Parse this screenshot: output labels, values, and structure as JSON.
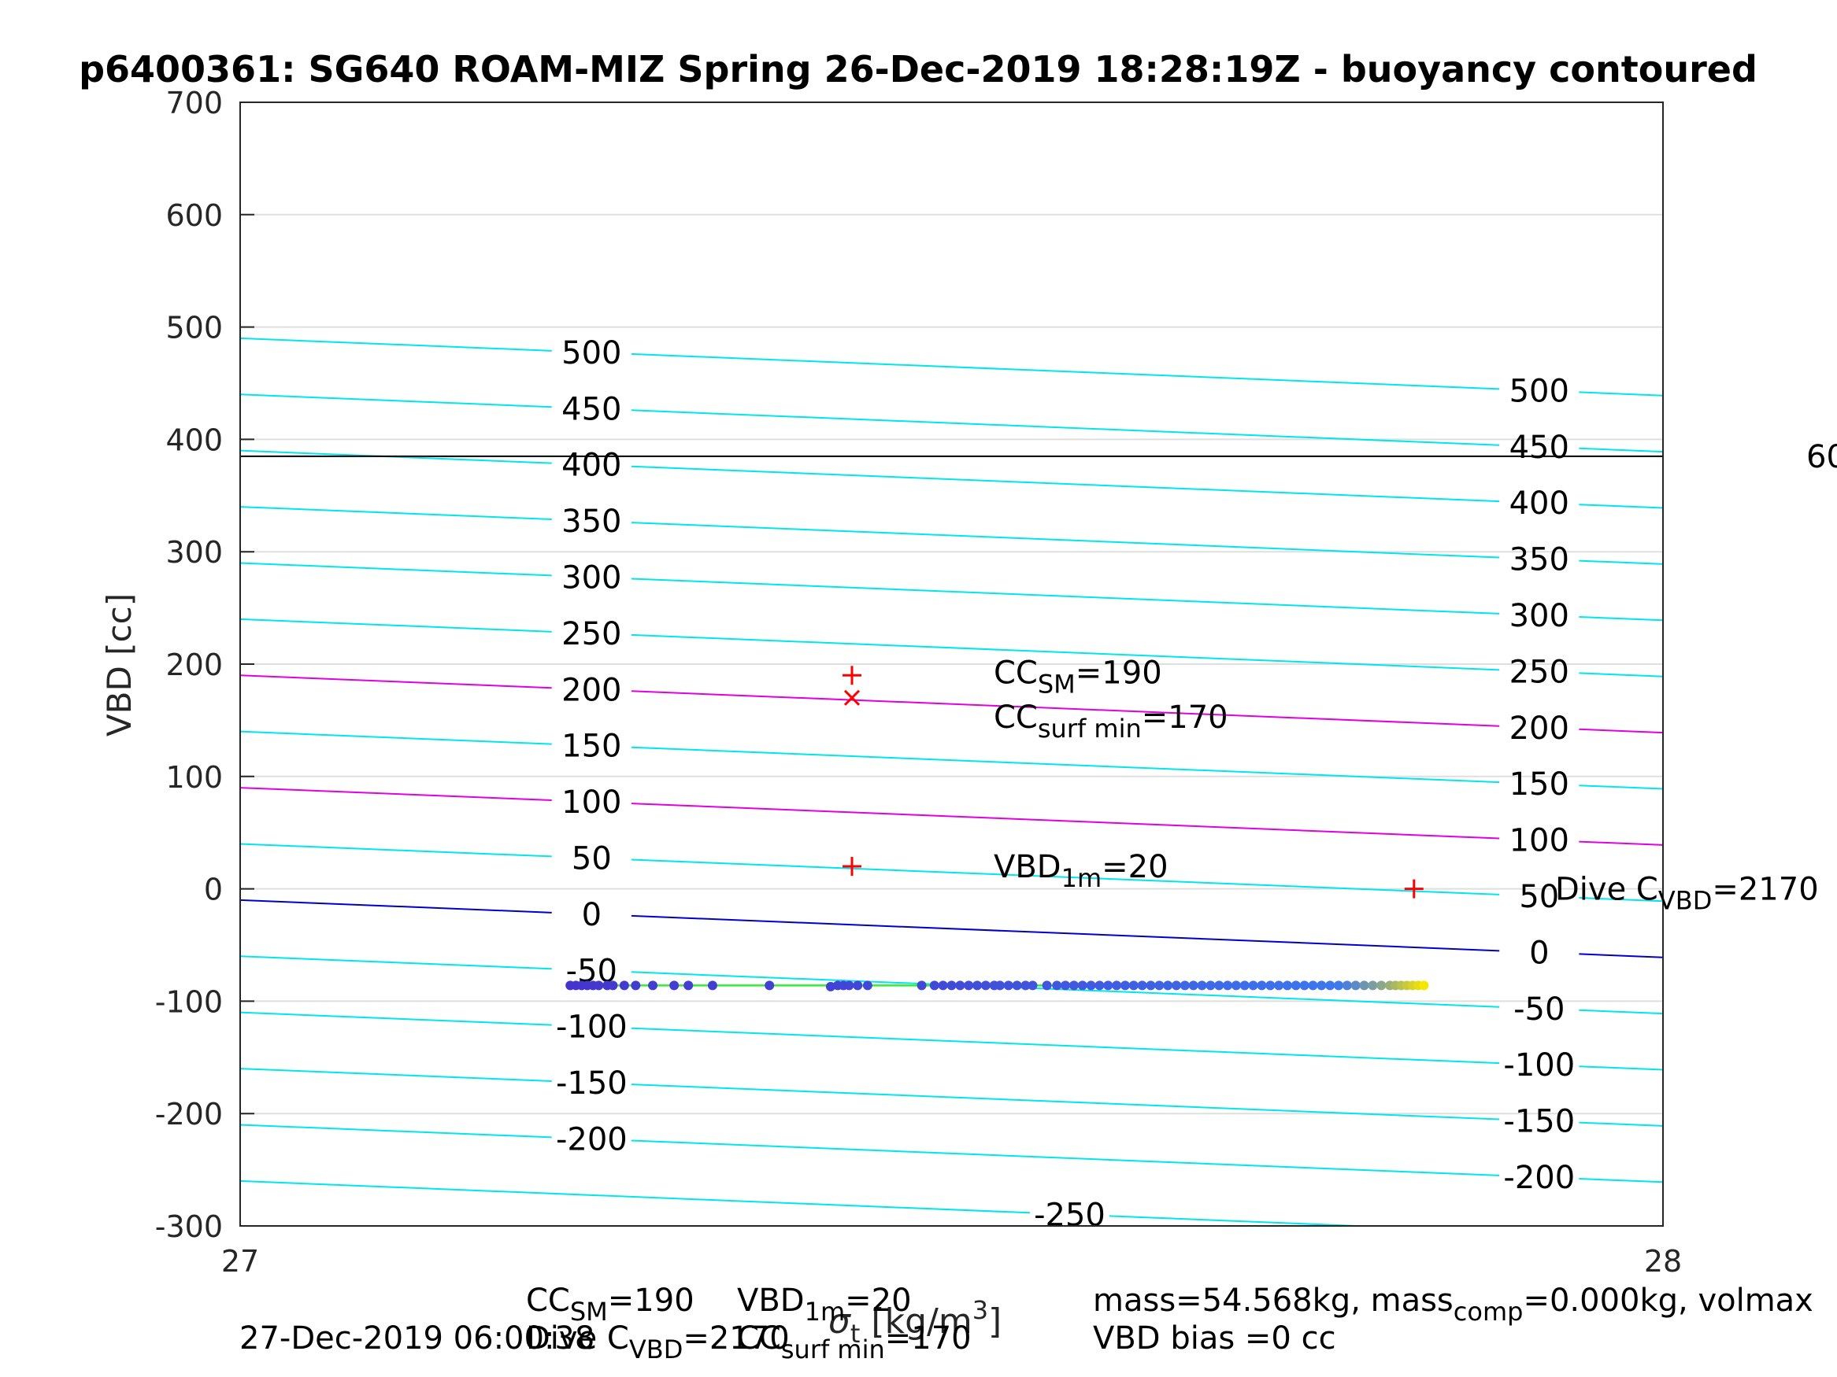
{
  "chart_data": {
    "type": "scatter",
    "title": "p6400361: SG640 ROAM-MIZ Spring 26-Dec-2019 18:28:19Z - buoyancy contoured",
    "ylabel": "VBD [cc]",
    "xlabel_prefix": "σ",
    "xlabel_sub": "t",
    "xlabel_suffix": " [kg/m",
    "xlabel_sup": "3",
    "xlabel_close": "]",
    "xlim": [
      27,
      28
    ],
    "ylim": [
      -300,
      700
    ],
    "x_ticks": [
      "27",
      "28"
    ],
    "y_ticks": [
      "-300",
      "-200",
      "-100",
      "0",
      "100",
      "200",
      "300",
      "400",
      "500",
      "600",
      "700"
    ],
    "grid": true,
    "colors": {
      "contour": "#00e5ee",
      "contour_magenta": "#e000e0",
      "zero_contour": "#0000cc",
      "hline": "#000000",
      "marker": "#ff0000",
      "fit_line": "#33ee33",
      "points_low": "#4433cc",
      "points_high": "#f5e600"
    },
    "contours": {
      "levels": [
        -250,
        -200,
        -150,
        -100,
        -50,
        0,
        50,
        100,
        150,
        200,
        250,
        300,
        350,
        400,
        450,
        500
      ],
      "slope_cc_per_unit": -51,
      "offset_cc_at_x27": -10,
      "magenta_levels": [
        100,
        200
      ],
      "left_labels": [
        "500",
        "450",
        "400",
        "350",
        "300",
        "250",
        "200",
        "150",
        "100",
        "50",
        "0",
        "-50",
        "-100",
        "-150",
        "-200"
      ],
      "right_labels": [
        "500",
        "450",
        "400",
        "350",
        "300",
        "250",
        "200",
        "150",
        "100",
        "50",
        "0",
        "-50",
        "-100",
        "-150",
        "-200"
      ],
      "bottom_label": "-250",
      "left_label_x": 27.247,
      "right_label_x": 27.913,
      "bottom_label_x": 27.583
    },
    "hline": {
      "y": 385,
      "label": "60"
    },
    "markers": [
      {
        "x": 27.43,
        "y": 190,
        "symbol": "+",
        "label_main": "CC",
        "label_sub": "SM",
        "label_tail": "=190"
      },
      {
        "x": 27.43,
        "y": 170,
        "symbol": "x",
        "label_main": "CC",
        "label_sub": "surf min",
        "label_tail": "=170"
      },
      {
        "x": 27.43,
        "y": 20,
        "symbol": "+",
        "label_main": "VBD",
        "label_sub": "1m",
        "label_tail": "=20"
      },
      {
        "x": 27.825,
        "y": 0,
        "symbol": "+",
        "label_main": "Dive C",
        "label_sub": "VBD",
        "label_tail": "=2170"
      }
    ],
    "fit_line": {
      "x": [
        27.23,
        27.83
      ],
      "y": [
        -86,
        -86
      ]
    },
    "points": {
      "x": [
        27.232,
        27.236,
        27.24,
        27.244,
        27.248,
        27.252,
        27.258,
        27.262,
        27.27,
        27.278,
        27.29,
        27.305,
        27.315,
        27.332,
        27.372,
        27.415,
        27.42,
        27.424,
        27.428,
        27.434,
        27.441,
        27.479,
        27.488,
        27.494,
        27.5,
        27.506,
        27.512,
        27.518,
        27.524,
        27.53,
        27.534,
        27.54,
        27.546,
        27.552,
        27.557,
        27.567,
        27.574,
        27.58,
        27.586,
        27.592,
        27.598,
        27.604,
        27.61,
        27.616,
        27.622,
        27.628,
        27.634,
        27.64,
        27.646,
        27.652,
        27.658,
        27.664,
        27.67,
        27.676,
        27.682,
        27.688,
        27.694,
        27.7,
        27.706,
        27.712,
        27.718,
        27.724,
        27.73,
        27.736,
        27.742,
        27.748,
        27.754,
        27.76,
        27.766,
        27.772,
        27.778,
        27.784,
        27.79,
        27.796,
        27.802,
        27.808,
        27.812,
        27.816,
        27.82,
        27.824,
        27.828,
        27.832
      ],
      "y": [
        -86,
        -86,
        -86,
        -86,
        -86,
        -86,
        -86,
        -86,
        -86,
        -86,
        -86,
        -86,
        -86,
        -86,
        -86,
        -87,
        -86,
        -86,
        -86,
        -86,
        -86,
        -86,
        -86,
        -86,
        -86,
        -86,
        -86,
        -86,
        -86,
        -86,
        -86,
        -86,
        -86,
        -86,
        -86,
        -86,
        -86,
        -86,
        -86,
        -86,
        -86,
        -86,
        -86,
        -86,
        -86,
        -86,
        -86,
        -86,
        -86,
        -86,
        -86,
        -86,
        -86,
        -86,
        -86,
        -86,
        -86,
        -86,
        -86,
        -86,
        -86,
        -86,
        -86,
        -86,
        -86,
        -86,
        -86,
        -86,
        -86,
        -86,
        -86,
        -86,
        -86,
        -86,
        -86,
        -86,
        -86,
        -86,
        -86,
        -86,
        -86,
        -86
      ]
    },
    "footer": {
      "timestamp": "27-Dec-2019 06:00:38",
      "cc_sm_main": "CC",
      "cc_sm_sub": "SM",
      "cc_sm_tail": "=190",
      "vbd1m_main": "VBD",
      "vbd1m_sub": "1m",
      "vbd1m_tail": "=20",
      "dive_main": "Dive C",
      "dive_sub": "VBD",
      "dive_tail": "=2170",
      "ccsurf_main": "CC",
      "ccsurf_sub": "surf min",
      "ccsurf_tail": "=170",
      "mass_a": "mass=54.568kg, mass",
      "mass_sub": "comp",
      "mass_b": "=0.000kg, volmax",
      "bias": "VBD bias =0 cc"
    }
  }
}
